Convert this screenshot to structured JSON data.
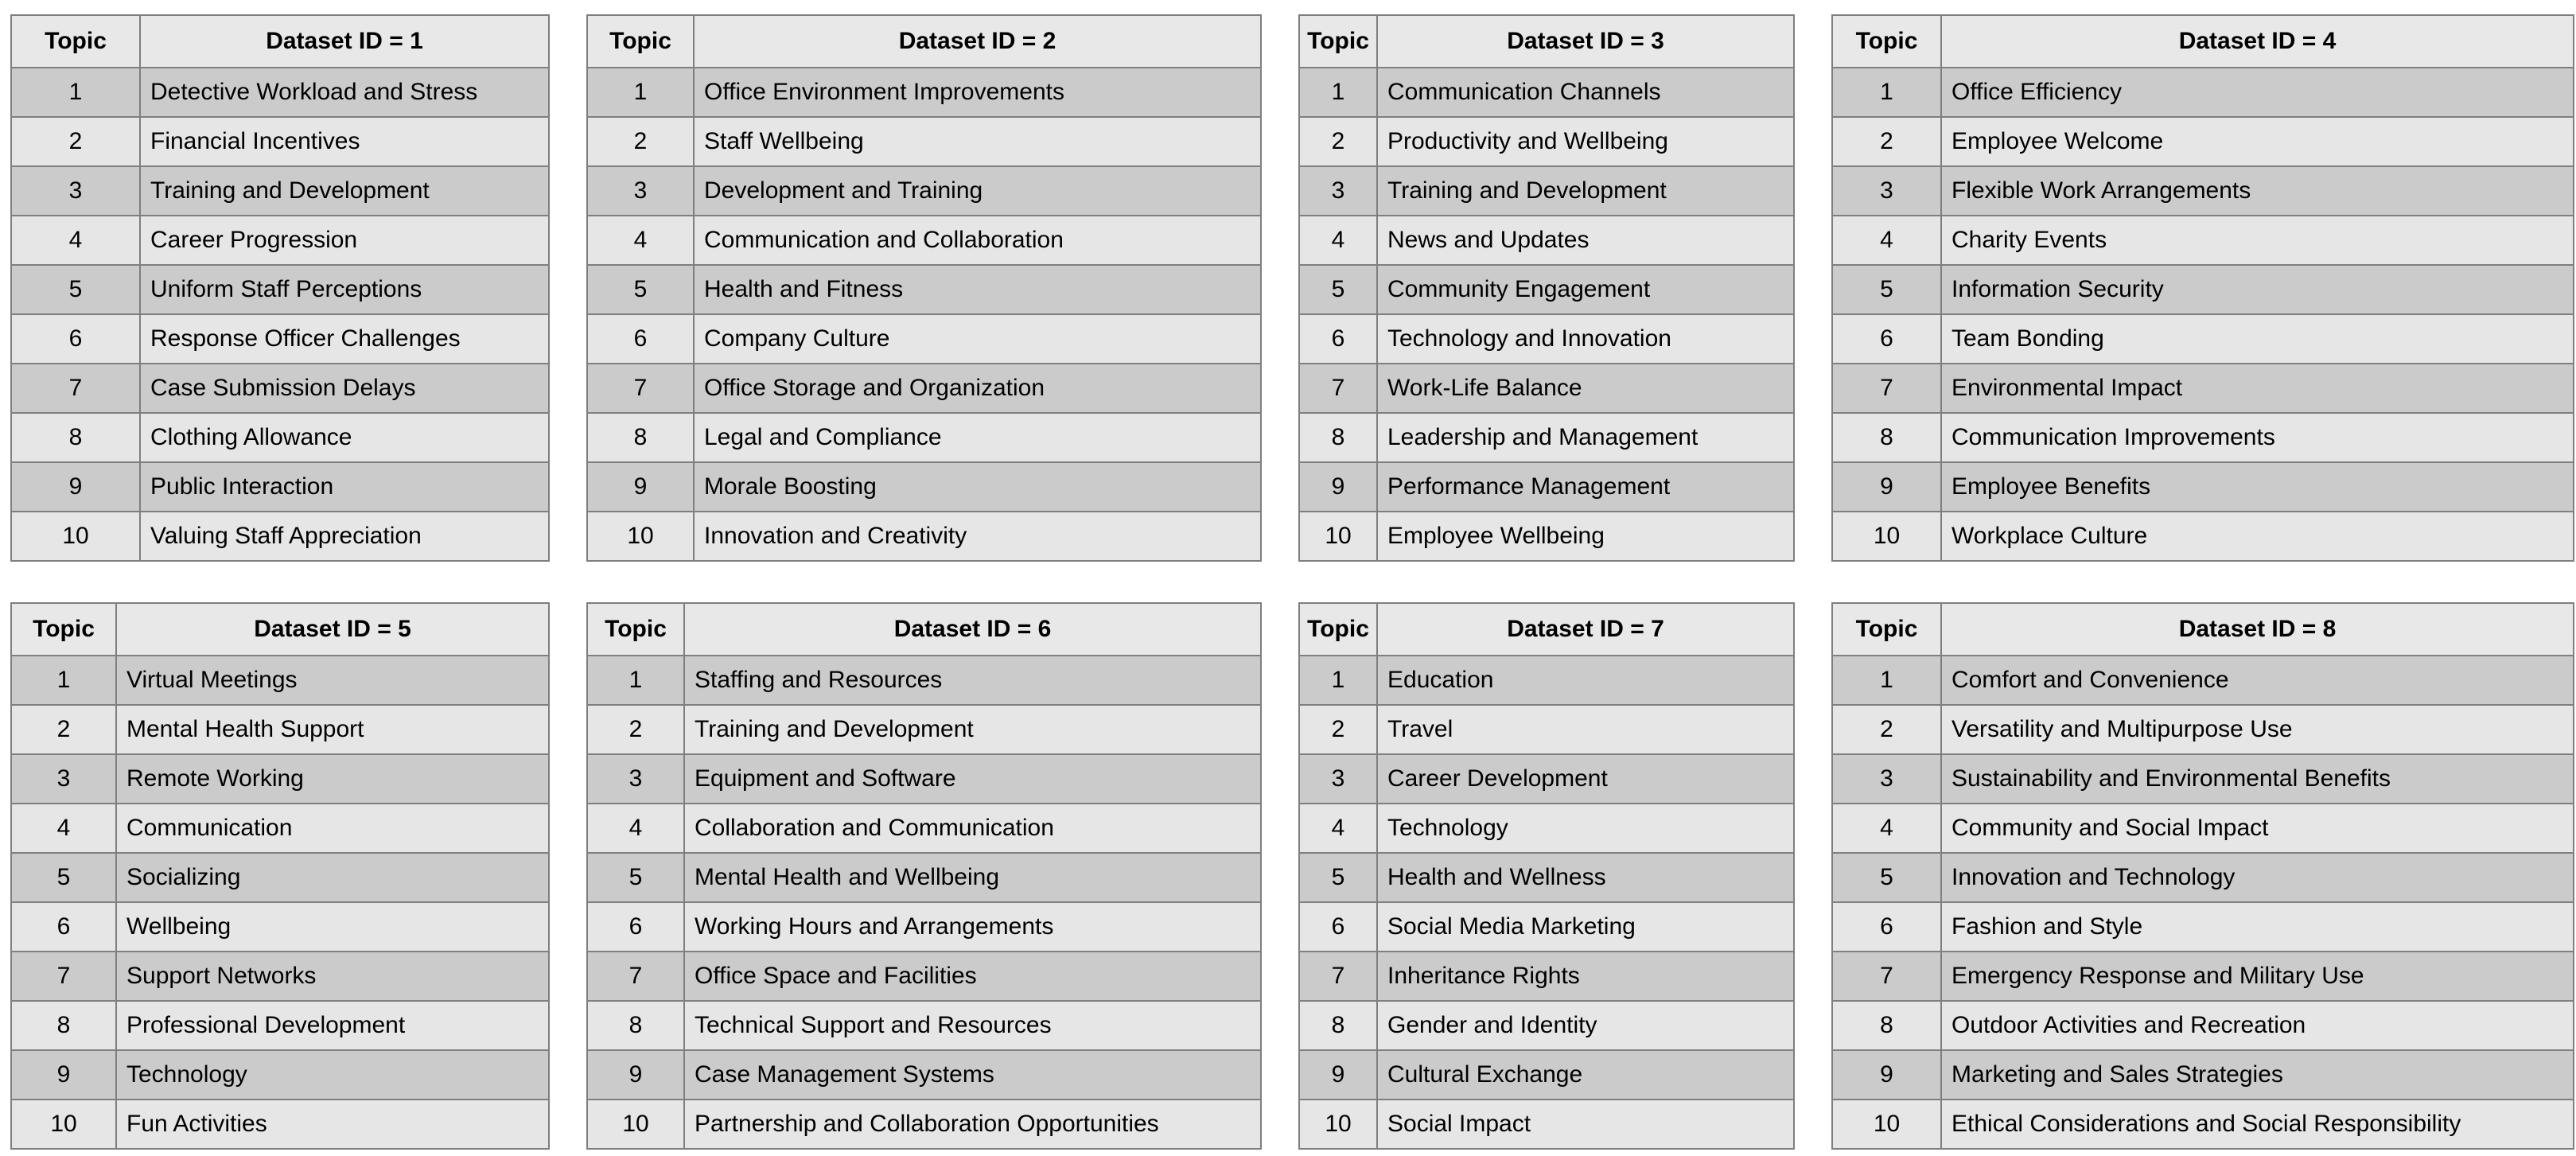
{
  "style": {
    "page_bg": "#ffffff",
    "header_bg": "#e8e8e8",
    "row_odd_bg": "#cbcbcb",
    "row_even_bg": "#e6e6e6",
    "border_color": "#7f7f7f",
    "text_color": "#000000"
  },
  "chart_data": [
    {
      "type": "table",
      "title": "Dataset ID = 1",
      "columns": [
        "Topic",
        "Dataset ID = 1"
      ],
      "rows": [
        [
          "1",
          "Detective Workload and Stress"
        ],
        [
          "2",
          "Financial Incentives"
        ],
        [
          "3",
          "Training and Development"
        ],
        [
          "4",
          "Career Progression"
        ],
        [
          "5",
          "Uniform Staff Perceptions"
        ],
        [
          "6",
          "Response Officer Challenges"
        ],
        [
          "7",
          "Case Submission Delays"
        ],
        [
          "8",
          "Clothing Allowance"
        ],
        [
          "9",
          "Public Interaction"
        ],
        [
          "10",
          "Valuing Staff Appreciation"
        ]
      ]
    },
    {
      "type": "table",
      "title": "Dataset ID = 2",
      "columns": [
        "Topic",
        "Dataset ID = 2"
      ],
      "rows": [
        [
          "1",
          "Office Environment Improvements"
        ],
        [
          "2",
          "Staff Wellbeing"
        ],
        [
          "3",
          "Development and Training"
        ],
        [
          "4",
          "Communication and Collaboration"
        ],
        [
          "5",
          "Health and Fitness"
        ],
        [
          "6",
          "Company Culture"
        ],
        [
          "7",
          "Office Storage and Organization"
        ],
        [
          "8",
          "Legal and Compliance"
        ],
        [
          "9",
          "Morale Boosting"
        ],
        [
          "10",
          "Innovation and Creativity"
        ]
      ]
    },
    {
      "type": "table",
      "title": "Dataset ID = 3",
      "columns": [
        "Topic",
        "Dataset ID = 3"
      ],
      "rows": [
        [
          "1",
          "Communication Channels"
        ],
        [
          "2",
          "Productivity and Wellbeing"
        ],
        [
          "3",
          "Training and Development"
        ],
        [
          "4",
          "News and Updates"
        ],
        [
          "5",
          "Community Engagement"
        ],
        [
          "6",
          "Technology and Innovation"
        ],
        [
          "7",
          "Work-Life Balance"
        ],
        [
          "8",
          "Leadership and Management"
        ],
        [
          "9",
          "Performance Management"
        ],
        [
          "10",
          "Employee Wellbeing"
        ]
      ]
    },
    {
      "type": "table",
      "title": "Dataset ID = 4",
      "columns": [
        "Topic",
        "Dataset ID = 4"
      ],
      "rows": [
        [
          "1",
          "Office Efficiency"
        ],
        [
          "2",
          "Employee Welcome"
        ],
        [
          "3",
          "Flexible Work Arrangements"
        ],
        [
          "4",
          "Charity Events"
        ],
        [
          "5",
          "Information Security"
        ],
        [
          "6",
          "Team Bonding"
        ],
        [
          "7",
          "Environmental Impact"
        ],
        [
          "8",
          "Communication Improvements"
        ],
        [
          "9",
          "Employee Benefits"
        ],
        [
          "10",
          "Workplace Culture"
        ]
      ]
    },
    {
      "type": "table",
      "title": "Dataset ID = 5",
      "columns": [
        "Topic",
        "Dataset ID = 5"
      ],
      "rows": [
        [
          "1",
          "Virtual Meetings"
        ],
        [
          "2",
          "Mental Health Support"
        ],
        [
          "3",
          "Remote Working"
        ],
        [
          "4",
          "Communication"
        ],
        [
          "5",
          "Socializing"
        ],
        [
          "6",
          "Wellbeing"
        ],
        [
          "7",
          "Support Networks"
        ],
        [
          "8",
          "Professional Development"
        ],
        [
          "9",
          "Technology"
        ],
        [
          "10",
          "Fun Activities"
        ]
      ]
    },
    {
      "type": "table",
      "title": "Dataset ID = 6",
      "columns": [
        "Topic",
        "Dataset ID = 6"
      ],
      "rows": [
        [
          "1",
          "Staffing and Resources"
        ],
        [
          "2",
          "Training and Development"
        ],
        [
          "3",
          "Equipment and Software"
        ],
        [
          "4",
          "Collaboration and Communication"
        ],
        [
          "5",
          "Mental Health and Wellbeing"
        ],
        [
          "6",
          "Working Hours and Arrangements"
        ],
        [
          "7",
          "Office Space and Facilities"
        ],
        [
          "8",
          "Technical Support and Resources"
        ],
        [
          "9",
          "Case Management Systems"
        ],
        [
          "10",
          "Partnership and Collaboration Opportunities"
        ]
      ]
    },
    {
      "type": "table",
      "title": "Dataset ID = 7",
      "columns": [
        "Topic",
        "Dataset ID = 7"
      ],
      "rows": [
        [
          "1",
          "Education"
        ],
        [
          "2",
          "Travel"
        ],
        [
          "3",
          "Career Development"
        ],
        [
          "4",
          "Technology"
        ],
        [
          "5",
          "Health and Wellness"
        ],
        [
          "6",
          "Social Media Marketing"
        ],
        [
          "7",
          "Inheritance Rights"
        ],
        [
          "8",
          "Gender and Identity"
        ],
        [
          "9",
          "Cultural Exchange"
        ],
        [
          "10",
          "Social Impact"
        ]
      ]
    },
    {
      "type": "table",
      "title": "Dataset ID = 8",
      "columns": [
        "Topic",
        "Dataset ID = 8"
      ],
      "rows": [
        [
          "1",
          "Comfort and Convenience"
        ],
        [
          "2",
          "Versatility and Multipurpose Use"
        ],
        [
          "3",
          "Sustainability and Environmental Benefits"
        ],
        [
          "4",
          "Community and Social Impact"
        ],
        [
          "5",
          "Innovation and Technology"
        ],
        [
          "6",
          "Fashion and Style"
        ],
        [
          "7",
          "Emergency Response and Military Use"
        ],
        [
          "8",
          "Outdoor Activities and Recreation"
        ],
        [
          "9",
          "Marketing and Sales Strategies"
        ],
        [
          "10",
          "Ethical Considerations and Social Responsibility"
        ]
      ]
    }
  ]
}
